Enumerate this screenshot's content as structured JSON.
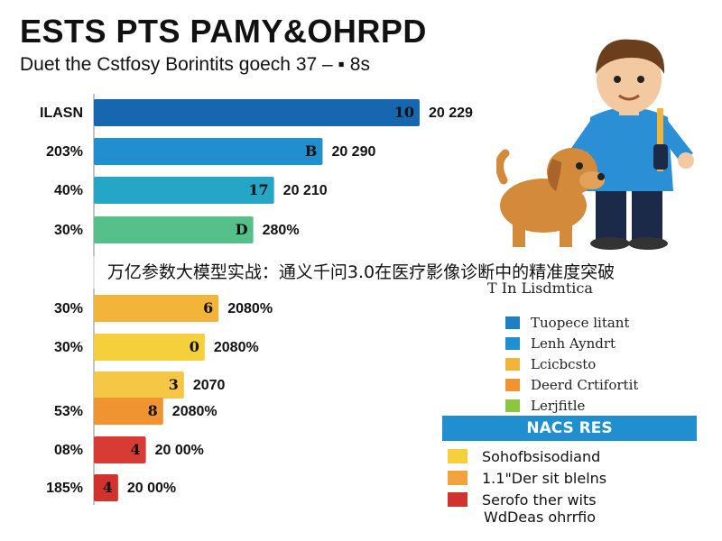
{
  "title": "ESTS PTS PAMY&OHRPD",
  "subtitle": "Duet the Cstfosy Borintits goech 37 –  ▪ 8s",
  "caption": "万亿参数大模型实战：通义千问3.0在医疗影像诊断中的精准度突破",
  "chart_data": {
    "type": "bar",
    "orientation": "horizontal",
    "title": "ESTS PTS PAMY&OHRPD",
    "subtitle": "Duet the Cstfosy Borintits goech 37 –  ▪ 8s",
    "xlim": [
      0,
      500
    ],
    "grid": false,
    "legend_placement": "right",
    "categories": [
      "ILASN",
      "203%",
      "40%",
      "30%",
      "30%",
      "30%",
      "",
      "53%",
      "08%",
      "185%"
    ],
    "values": [
      470,
      330,
      260,
      230,
      180,
      160,
      130,
      100,
      75,
      35
    ],
    "bar_labels": [
      "10",
      "B",
      "17",
      "D",
      "6",
      "0",
      "3",
      "8",
      "4",
      "4"
    ],
    "value_labels": [
      "20 229",
      "20 290",
      "20 210",
      "280%",
      "2080%",
      "2080%",
      "2070",
      "2080%",
      "20 00%",
      "20 00%"
    ],
    "colors": [
      "#1666b0",
      "#1f8fd0",
      "#26a6c6",
      "#56c08a",
      "#f2b53a",
      "#f5cf3c",
      "#f6c744",
      "#ef9431",
      "#d83a34",
      "#d0322e"
    ]
  },
  "legend": {
    "title": "T In Lisdmtica",
    "items": [
      {
        "label": "Tuopece litant",
        "color": "#1f7fc4"
      },
      {
        "label": "Lenh Ayndrt",
        "color": "#1f8fd0"
      },
      {
        "label": "Lcicbcsto",
        "color": "#f2b53a"
      },
      {
        "label": "Deerd Crtifortit",
        "color": "#ef9431"
      },
      {
        "label": "Lerjfitle",
        "color": "#8cc63f"
      }
    ]
  },
  "box": {
    "title": "NACS RES",
    "items": [
      {
        "label": "Sohofbsisodiand",
        "color": "#f5cf3c"
      },
      {
        "label": "1.1\"Der sit blelns",
        "color": "#f2a43a"
      },
      {
        "label": "Serofo ther wits",
        "color": "#d0322e"
      }
    ],
    "footer": "WdDeas ohrrfio"
  }
}
